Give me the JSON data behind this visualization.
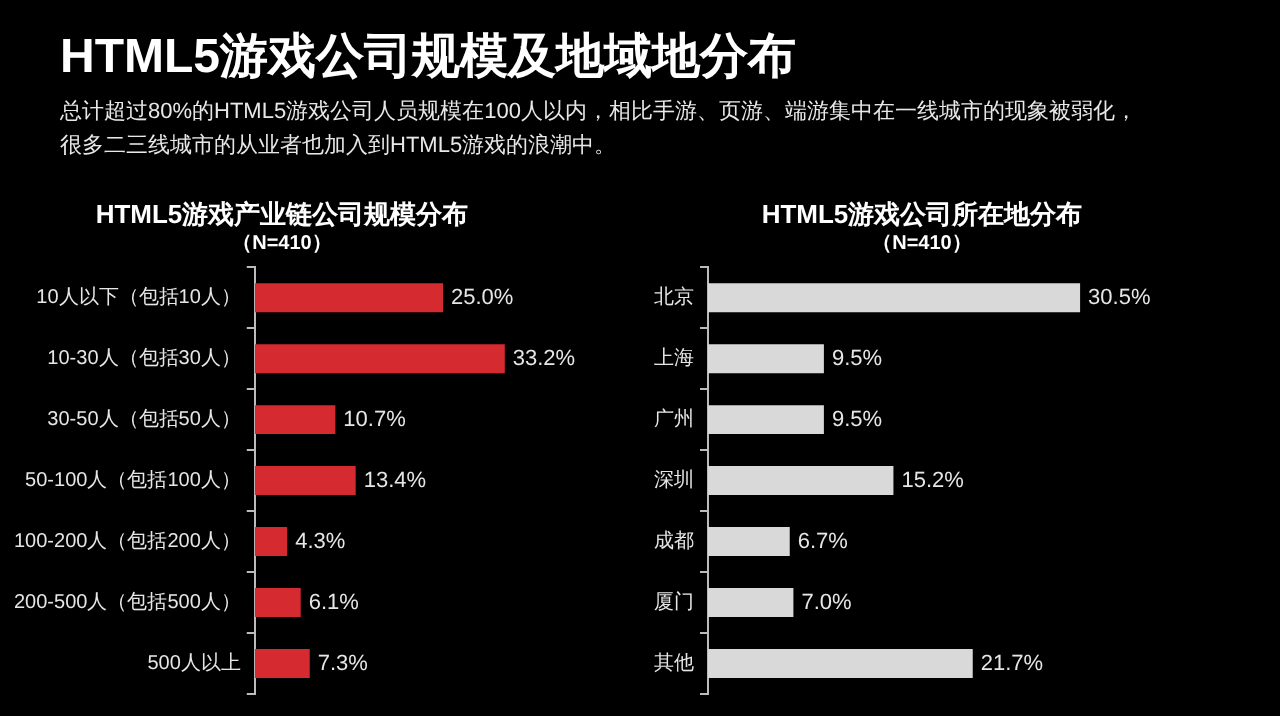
{
  "chart_data": [
    {
      "type": "other",
      "title": "HTML5游戏公司规模及地域地分布",
      "subtitle": "总计超过80%的HTML5游戏公司人员规模在100人以内，相比手游、页游、端游集中在一线城市的现象被弱化，很多二三线城市的从业者也加入到HTML5游戏的浪潮中。"
    },
    {
      "type": "bar",
      "orientation": "horizontal",
      "title": "HTML5游戏产业链公司规模分布",
      "subtitle": "（N=410）",
      "categories": [
        "10人以下（包括10人）",
        "10-30人（包括30人）",
        "30-50人（包括50人）",
        "50-100人（包括100人）",
        "100-200人（包括200人）",
        "200-500人（包括500人）",
        "500人以上"
      ],
      "series": [
        {
          "color": "#d42a30",
          "values": [
            25.0,
            33.2,
            10.7,
            13.4,
            4.3,
            6.1,
            7.3
          ],
          "value_labels": [
            "25.0%",
            "33.2%",
            "10.7%",
            "13.4%",
            "4.3%",
            "6.1%",
            "7.3%"
          ]
        }
      ],
      "tick_labels": "y",
      "grid": false,
      "legend": false
    },
    {
      "type": "bar",
      "orientation": "horizontal",
      "title": "HTML5游戏公司所在地分布",
      "subtitle": "（N=410）",
      "categories": [
        "北京",
        "上海",
        "广州",
        "深圳",
        "成都",
        "厦门",
        "其他"
      ],
      "series": [
        {
          "color": "#d9d9d9",
          "values": [
            30.5,
            9.5,
            9.5,
            15.2,
            6.7,
            7.0,
            21.7
          ],
          "value_labels": [
            "30.5%",
            "9.5%",
            "9.5%",
            "15.2%",
            "6.7%",
            "7.0%",
            "21.7%"
          ]
        }
      ],
      "tick_labels": "y",
      "grid": false,
      "legend": false
    }
  ]
}
